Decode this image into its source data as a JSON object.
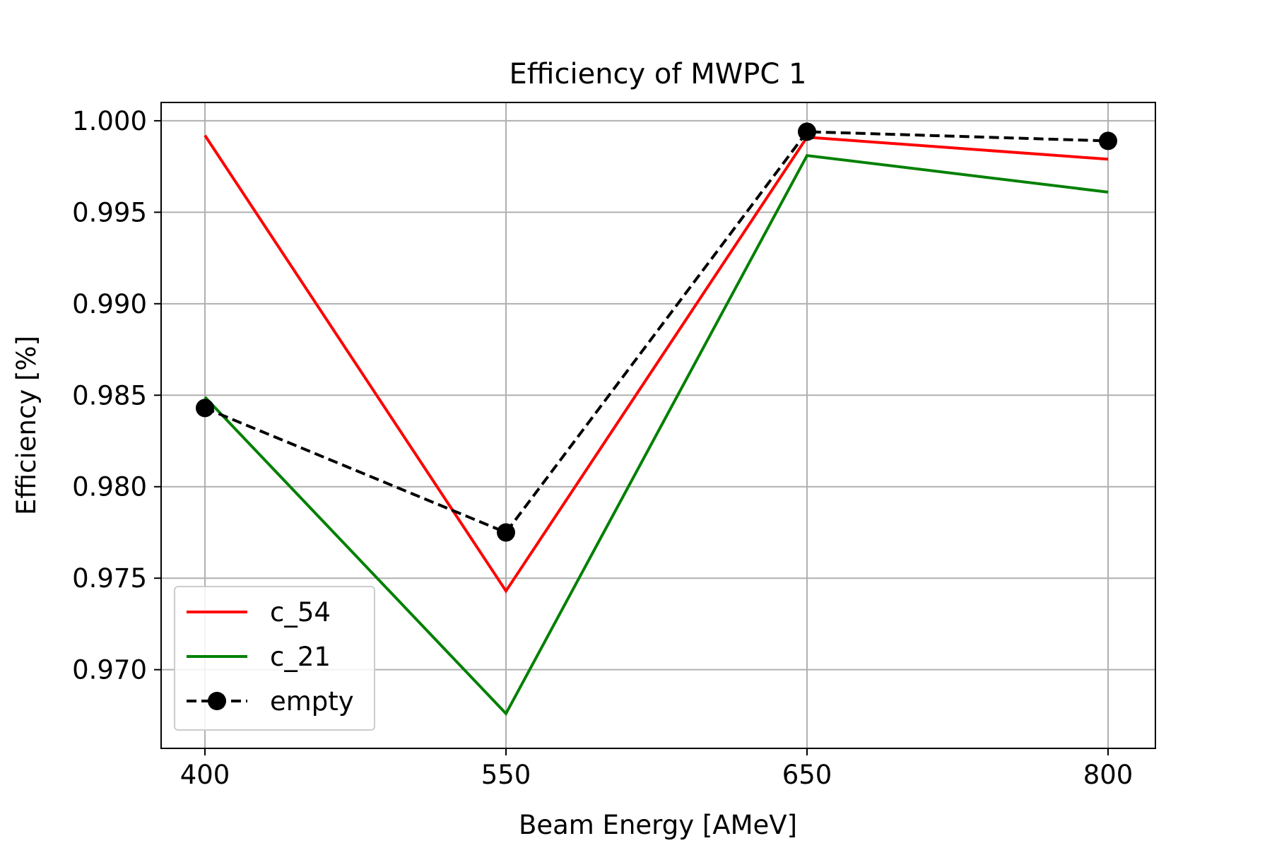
{
  "chart_data": {
    "type": "line",
    "title": "Efficiency of MWPC 1",
    "xlabel": "Beam Energy [AMeV]",
    "ylabel": "Efficiency [%]",
    "categories": [
      "400",
      "550",
      "650",
      "800"
    ],
    "ylim": [
      0.9657,
      1.001
    ],
    "yticks": [
      "0.970",
      "0.975",
      "0.980",
      "0.985",
      "0.990",
      "0.995",
      "1.000"
    ],
    "grid": true,
    "legend_position": "lower-left",
    "series": [
      {
        "name": "c_54",
        "color": "#ff0000",
        "style": "solid",
        "marker": "none",
        "values": [
          0.9992,
          0.9743,
          0.9991,
          0.9979
        ]
      },
      {
        "name": "c_21",
        "color": "#008000",
        "style": "solid",
        "marker": "none",
        "values": [
          0.9849,
          0.9676,
          0.9981,
          0.9961
        ]
      },
      {
        "name": "empty",
        "color": "#000000",
        "style": "dashed",
        "marker": "circle",
        "values": [
          0.9843,
          0.9775,
          0.9994,
          0.9989
        ]
      }
    ]
  }
}
